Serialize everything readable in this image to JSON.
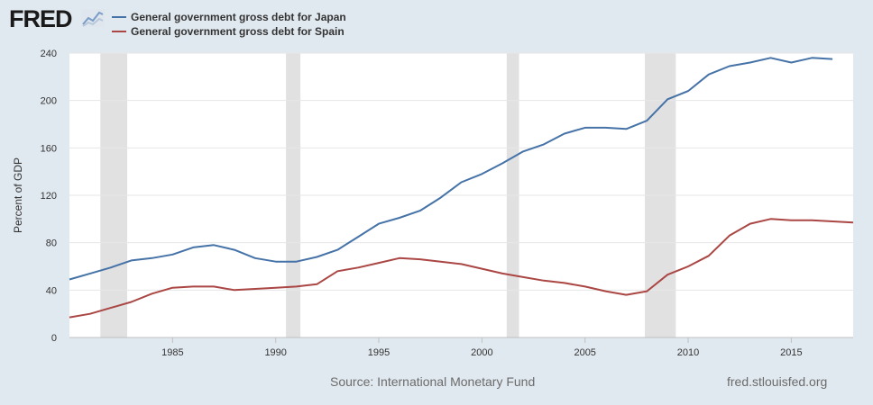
{
  "header": {
    "logo_text": "FRED",
    "logo_icon": "chart-line-icon"
  },
  "colors": {
    "japan": "#4572a7",
    "spain": "#aa4643",
    "recession": "#e1e1e1",
    "grid": "#e6e6e6"
  },
  "footer": {
    "source": "Source: International Monetary Fund",
    "url": "fred.stlouisfed.org"
  },
  "chart_data": {
    "type": "line",
    "ylabel": "Percent of GDP",
    "xlim": [
      1980,
      2018
    ],
    "ylim": [
      0,
      240
    ],
    "y_ticks": [
      0,
      40,
      80,
      120,
      160,
      200,
      240
    ],
    "x_ticks": [
      1985,
      1990,
      1995,
      2000,
      2005,
      2010,
      2015
    ],
    "grid": true,
    "legend_position": "top-left",
    "recessions": [
      [
        1981.5,
        1982.8
      ],
      [
        1990.5,
        1991.2
      ],
      [
        2001.2,
        2001.8
      ],
      [
        2007.9,
        2009.4
      ]
    ],
    "series": [
      {
        "name": "General government gross debt for Japan",
        "color": "#4572a7",
        "x": [
          1980,
          1981,
          1982,
          1983,
          1984,
          1985,
          1986,
          1987,
          1988,
          1989,
          1990,
          1991,
          1992,
          1993,
          1994,
          1995,
          1996,
          1997,
          1998,
          1999,
          2000,
          2001,
          2002,
          2003,
          2004,
          2005,
          2006,
          2007,
          2008,
          2009,
          2010,
          2011,
          2012,
          2013,
          2014,
          2015,
          2016,
          2017
        ],
        "values": [
          49,
          54,
          59,
          65,
          67,
          70,
          76,
          78,
          74,
          67,
          64,
          64,
          68,
          74,
          85,
          96,
          101,
          107,
          118,
          131,
          138,
          147,
          157,
          163,
          172,
          177,
          177,
          176,
          183,
          201,
          208,
          222,
          229,
          232,
          236,
          232,
          236,
          235
        ]
      },
      {
        "name": "General government gross debt for Spain",
        "color": "#aa4643",
        "x": [
          1980,
          1981,
          1982,
          1983,
          1984,
          1985,
          1986,
          1987,
          1988,
          1989,
          1990,
          1991,
          1992,
          1993,
          1994,
          1995,
          1996,
          1997,
          1998,
          1999,
          2000,
          2001,
          2002,
          2003,
          2004,
          2005,
          2006,
          2007,
          2008,
          2009,
          2010,
          2011,
          2012,
          2013,
          2014,
          2015,
          2016,
          2017,
          2018
        ],
        "values": [
          17,
          20,
          25,
          30,
          37,
          42,
          43,
          43,
          40,
          41,
          42,
          43,
          45,
          56,
          59,
          63,
          67,
          66,
          64,
          62,
          58,
          54,
          51,
          48,
          46,
          43,
          39,
          36,
          39,
          53,
          60,
          69,
          86,
          96,
          100,
          99,
          99,
          98,
          97
        ]
      }
    ]
  }
}
